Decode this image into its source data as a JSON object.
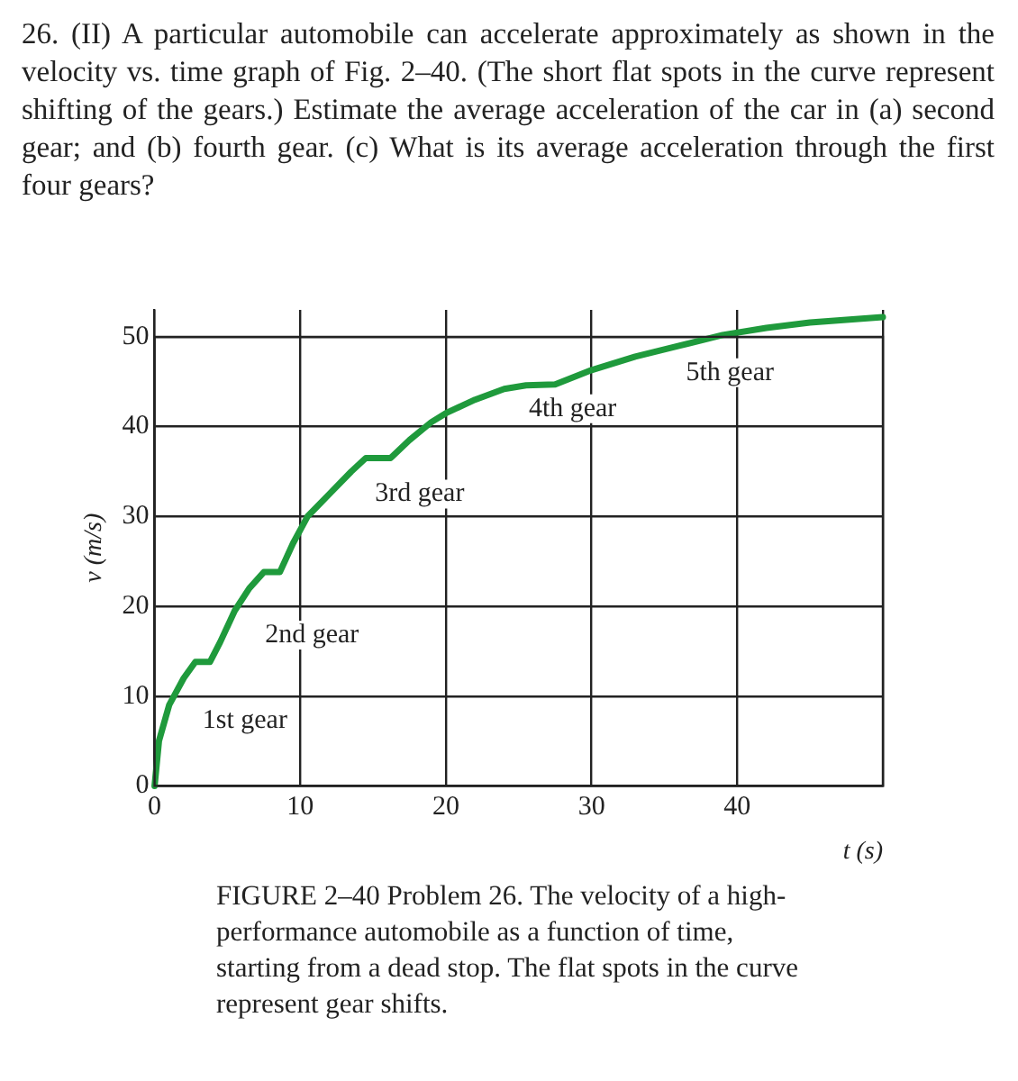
{
  "chart_data": {
    "type": "line",
    "title": "26. (II) A particular automobile can accelerate approximately as shown in the velocity vs. time graph of Fig. 2–40. (The short flat spots in the curve represent shifting of the gears.) Estimate the average acceleration of the car in (a) second gear; and (b) fourth gear. (c) What is its average acceleration through the first four gears?",
    "xlabel": "t (s)",
    "ylabel": "v (m/s)",
    "x": [
      0,
      0.3,
      1,
      2,
      2.8,
      3.8,
      4.5,
      5.5,
      6.5,
      7.5,
      8.6,
      9.5,
      10.5,
      12,
      13.5,
      14.5,
      16.2,
      17.5,
      19,
      20,
      22,
      24,
      25.5,
      27.5,
      30,
      33,
      36,
      39,
      42,
      45,
      50
    ],
    "series": [
      {
        "color": "#1f9a3c",
        "values": [
          0,
          5,
          9,
          12,
          13.8,
          13.8,
          16,
          19.5,
          22,
          23.8,
          23.8,
          27,
          30,
          32.5,
          35,
          36.5,
          36.5,
          38.5,
          40.5,
          41.5,
          43,
          44.2,
          44.6,
          44.7,
          46.3,
          47.8,
          49,
          50.2,
          51,
          51.6,
          52.2
        ]
      }
    ],
    "xlim": [
      0,
      50
    ],
    "xticks": [
      0,
      10,
      20,
      30,
      40,
      {
        "value": 50,
        "label": null
      }
    ],
    "ylim": [
      0,
      53
    ],
    "yticks": [
      0,
      10,
      20,
      30,
      40,
      50
    ],
    "grid": true,
    "legend": false,
    "marker": "none",
    "line_style": "solid",
    "annotations": [
      "1st gear",
      "2nd gear",
      "3rd gear",
      "4th gear",
      "5th gear",
      "FIGURE 2–40 Problem 26. The velocity of a high-performance automobile as a function of time, starting from a dead stop. The flat spots in the curve represent gear shifts."
    ]
  }
}
